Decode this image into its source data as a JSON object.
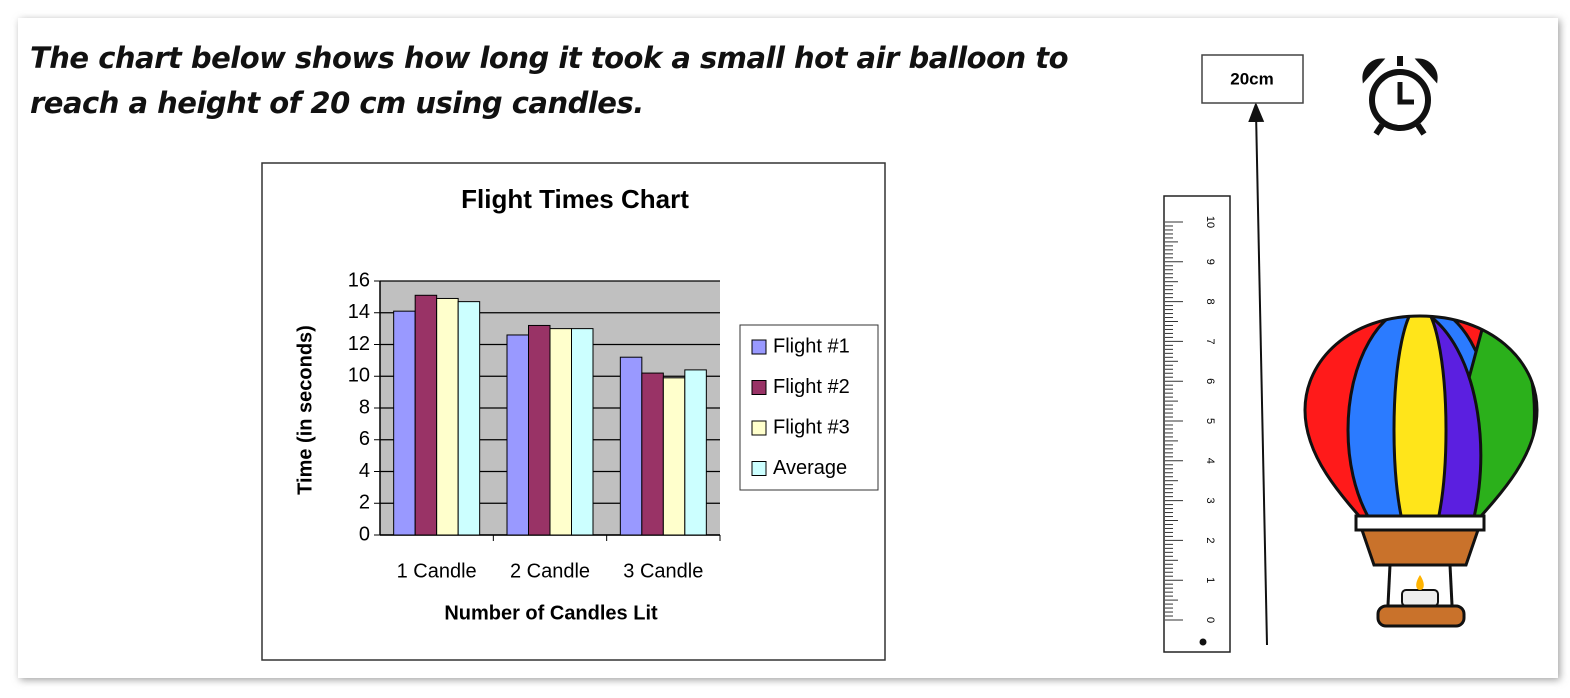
{
  "question": "The chart below shows how long it took a small hot air balloon to reach a height of 20 cm using candles.",
  "target_label": "20cm",
  "ruler": {
    "labels": [
      0,
      1,
      2,
      3,
      4,
      5,
      6,
      7,
      8,
      9,
      10
    ]
  },
  "chart_data": {
    "type": "bar",
    "title": "Flight Times Chart",
    "x_label": "Number of Candles Lit",
    "y_label": "Time (in seconds)",
    "categories": [
      "1 Candle",
      "2 Candle",
      "3 Candle"
    ],
    "series": [
      {
        "name": "Flight #1",
        "color": "#9999ff",
        "values": [
          14.1,
          12.6,
          11.2
        ]
      },
      {
        "name": "Flight #2",
        "color": "#993366",
        "values": [
          15.1,
          13.2,
          10.2
        ]
      },
      {
        "name": "Flight #3",
        "color": "#ffffcc",
        "values": [
          14.9,
          13.0,
          9.9
        ]
      },
      {
        "name": "Average",
        "color": "#ccffff",
        "values": [
          14.7,
          13.0,
          10.4
        ]
      }
    ],
    "ylim": [
      0,
      16
    ],
    "yticks": [
      0,
      2,
      4,
      6,
      8,
      10,
      12,
      14,
      16
    ],
    "grid": true,
    "plot_background": "#c0c0c0",
    "legend": "right"
  }
}
